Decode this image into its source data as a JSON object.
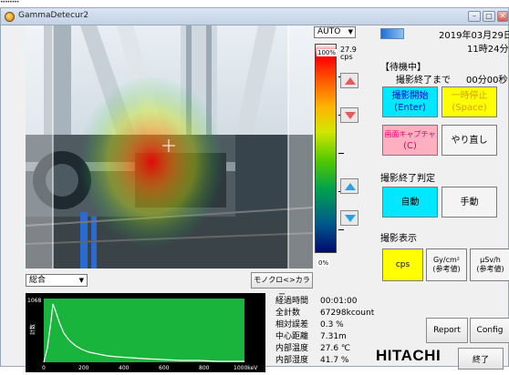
{
  "top_marks": "••••••••",
  "window": {
    "title": "GammaDetecur2",
    "controls": [
      "–",
      "□",
      "✕"
    ]
  },
  "camera": {
    "mode_select": "AUTO",
    "scale": {
      "max_percent": "100%",
      "min_percent": "0%",
      "max_value": "27.9",
      "max_unit": "cps"
    },
    "detector_select": "総合",
    "mono_color_button": "モノクロ<>カラー"
  },
  "spectrum": {
    "y_max_label": "1068",
    "y_axis_label": "計数",
    "x_ticks": [
      "0",
      "200",
      "400",
      "600",
      "800",
      "1000keV"
    ],
    "plot_color": "#19b43c",
    "curve_color": "#ffffff"
  },
  "measurement": [
    {
      "label": "経過時間",
      "value": "00:01:00"
    },
    {
      "label": "全計数",
      "value": "67298kcount"
    },
    {
      "label": "相対誤差",
      "value": "0.3 %"
    },
    {
      "label": "中心距離",
      "value": "7.31m"
    },
    {
      "label": "内部温度",
      "value": "27.6 ℃"
    },
    {
      "label": "内部湿度",
      "value": "41.7 %"
    }
  ],
  "status": {
    "date": "2019年03月29日",
    "time": "11時24分",
    "state_label": "【待機中】",
    "remaining_label": "撮影終了まで",
    "remaining_value": "00分00秒",
    "led_color": "#1e6fd6"
  },
  "buttons": {
    "start": {
      "line1": "撮影開始",
      "line2": "(Enter)"
    },
    "pause": {
      "line1": "一時停止",
      "line2": "(Space)"
    },
    "capture": {
      "line1": "画面キャプチャ",
      "line2": "(C)"
    },
    "redo": "やり直し",
    "auto": "自動",
    "manual": "手動",
    "cps": "cps",
    "gy": {
      "line1": "Gy/cm²",
      "line2": "(参考値)"
    },
    "usv": {
      "line1": "μSv/h",
      "line2": "(参考値)"
    },
    "report": "Report",
    "config": "Config",
    "exit": "終了"
  },
  "labels": {
    "end_judge": "撮影終了判定",
    "display": "撮影表示"
  },
  "logo_text": "HITACHI"
}
